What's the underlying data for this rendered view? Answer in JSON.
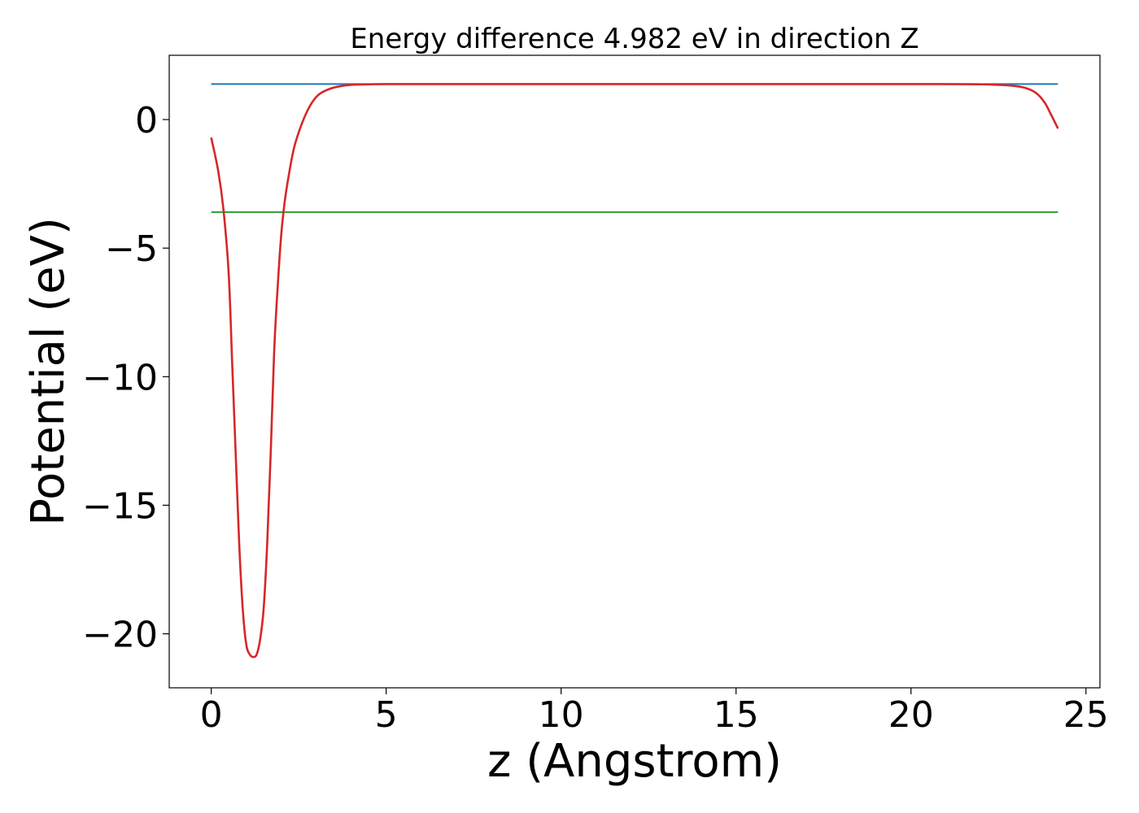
{
  "chart_data": {
    "type": "line",
    "title": "Energy difference 4.982 eV in direction Z",
    "xlabel": "z (Angstrom)",
    "ylabel": "Potential (eV)",
    "xlim": [
      -1.2,
      25.4
    ],
    "ylim": [
      -22.1,
      2.5
    ],
    "x_ticks": [
      0,
      5,
      10,
      15,
      20,
      25
    ],
    "x_tick_labels": [
      "0",
      "5",
      "10",
      "15",
      "20",
      "25"
    ],
    "y_ticks": [
      0,
      -5,
      -10,
      -15,
      -20
    ],
    "y_tick_labels": [
      "0",
      "−5",
      "−10",
      "−15",
      "−20"
    ],
    "grid": false,
    "series": [
      {
        "color": "#d62728",
        "x": [
          0.0,
          0.2,
          0.35,
          0.5,
          0.6,
          0.7,
          0.8,
          0.9,
          1.0,
          1.1,
          1.2,
          1.3,
          1.4,
          1.5,
          1.6,
          1.7,
          1.8,
          1.9,
          2.0,
          2.1,
          2.2,
          2.35,
          2.5,
          2.7,
          2.9,
          3.1,
          3.4,
          3.7,
          4.0,
          4.5,
          5.0,
          7.0,
          10.0,
          15.0,
          20.0,
          22.0,
          23.0,
          23.5,
          23.8,
          24.0,
          24.2
        ],
        "y": [
          -0.7,
          -2.0,
          -3.5,
          -6.0,
          -9.5,
          -13.0,
          -16.5,
          -19.0,
          -20.4,
          -20.8,
          -20.9,
          -20.8,
          -20.2,
          -19.0,
          -16.5,
          -13.0,
          -9.0,
          -6.5,
          -4.5,
          -3.2,
          -2.3,
          -1.2,
          -0.5,
          0.2,
          0.7,
          1.0,
          1.2,
          1.3,
          1.35,
          1.37,
          1.38,
          1.38,
          1.38,
          1.38,
          1.38,
          1.37,
          1.3,
          1.1,
          0.7,
          0.2,
          -0.35
        ]
      },
      {
        "color": "#1f77b4",
        "x": [
          0.0,
          24.2
        ],
        "y": [
          1.38,
          1.38
        ]
      },
      {
        "color": "#2ca02c",
        "x": [
          0.0,
          24.2
        ],
        "y": [
          -3.6,
          -3.6
        ]
      }
    ]
  }
}
